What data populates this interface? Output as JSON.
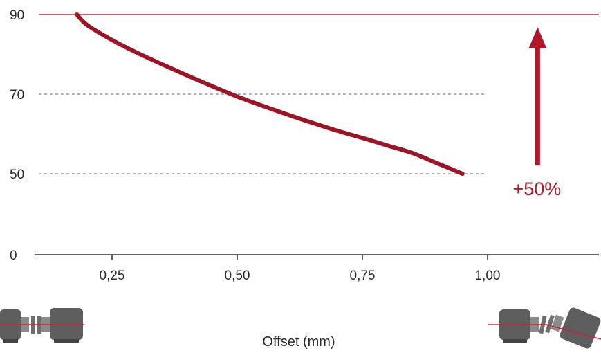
{
  "chart_data": {
    "type": "line",
    "title": "",
    "xlabel": "Offset (mm)",
    "ylabel": "",
    "x_ticks": [
      "0,25",
      "0,50",
      "0,75",
      "1,00"
    ],
    "x_tick_values": [
      0.25,
      0.5,
      0.75,
      1.0
    ],
    "y_ticks": [
      "0",
      "50",
      "70",
      "90"
    ],
    "y_tick_values": [
      0,
      50,
      70,
      90
    ],
    "xlim": [
      0.1,
      1.22
    ],
    "grid": "dashed reference lines at 50 and 70",
    "reference_line": {
      "y": 90,
      "color": "#c2283a"
    },
    "series": [
      {
        "color": "#9b1526",
        "x": [
          0.18,
          0.2,
          0.25,
          0.3,
          0.35,
          0.4,
          0.45,
          0.5,
          0.55,
          0.6,
          0.65,
          0.7,
          0.75,
          0.8,
          0.85,
          0.9,
          0.95
        ],
        "y": [
          90.0,
          87.4,
          83.6,
          80.4,
          77.5,
          74.7,
          72.0,
          69.4,
          67.1,
          64.9,
          62.8,
          60.8,
          59.0,
          57.1,
          55.2,
          52.6,
          50.0
        ]
      }
    ],
    "annotation": {
      "text": "+50%",
      "arrow_from": 53,
      "arrow_to": 90,
      "x": 1.1,
      "color": "#b0182a"
    }
  },
  "icons": {
    "left": "aligned-coupling-icon",
    "right": "misaligned-coupling-icon"
  }
}
